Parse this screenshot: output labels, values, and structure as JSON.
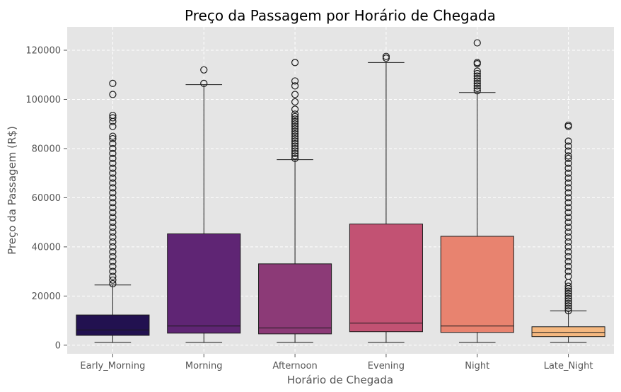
{
  "chart_data": {
    "type": "box",
    "title": "Preço da Passagem por Horário de Chegada",
    "xlabel": "Horário de Chegada",
    "ylabel": "Preço da Passagem (R$)",
    "ylim": [
      -3500,
      129500
    ],
    "yticks": [
      0,
      20000,
      40000,
      60000,
      80000,
      100000,
      120000
    ],
    "grid": true,
    "categories": [
      "Early_Morning",
      "Morning",
      "Afternoon",
      "Evening",
      "Night",
      "Late_Night"
    ],
    "boxes": [
      {
        "category": "Early_Morning",
        "whisker_low": 1100,
        "q1": 4000,
        "median": 6200,
        "q3": 12300,
        "whisker_high": 24500,
        "color": "#221150",
        "outliers": [
          25000,
          26500,
          28000,
          30000,
          32000,
          34000,
          36000,
          38000,
          40000,
          42000,
          44000,
          46000,
          48000,
          50000,
          52000,
          54000,
          56000,
          58000,
          60000,
          62000,
          64000,
          66000,
          68000,
          70000,
          72000,
          74000,
          76000,
          78000,
          80000,
          82000,
          84000,
          85000,
          89000,
          91000,
          92500,
          93500,
          102000,
          106500
        ]
      },
      {
        "category": "Morning",
        "whisker_low": 1100,
        "q1": 4900,
        "median": 7800,
        "q3": 45300,
        "whisker_high": 106000,
        "color": "#5f2574",
        "outliers": [
          106500,
          112000
        ]
      },
      {
        "category": "Afternoon",
        "whisker_low": 1100,
        "q1": 4600,
        "median": 7000,
        "q3": 33100,
        "whisker_high": 75500,
        "color": "#8c3a77",
        "outliers": [
          76000,
          77000,
          78000,
          79000,
          80000,
          81000,
          82000,
          83000,
          84000,
          85000,
          86000,
          87000,
          88000,
          89000,
          90000,
          91000,
          92000,
          93000,
          94000,
          96000,
          99000,
          102000,
          105500,
          107500,
          115000
        ]
      },
      {
        "category": "Evening",
        "whisker_low": 1100,
        "q1": 5500,
        "median": 9000,
        "q3": 49300,
        "whisker_high": 115000,
        "color": "#c25273",
        "outliers": [
          116800,
          117500
        ]
      },
      {
        "category": "Night",
        "whisker_low": 1100,
        "q1": 5200,
        "median": 7800,
        "q3": 44300,
        "whisker_high": 102800,
        "color": "#e8836f",
        "outliers": [
          103500,
          104500,
          105500,
          106500,
          107500,
          108500,
          109500,
          110500,
          111500,
          114500,
          115000,
          123000
        ]
      },
      {
        "category": "Late_Night",
        "whisker_low": 1100,
        "q1": 3500,
        "median": 5200,
        "q3": 7500,
        "whisker_high": 14000,
        "color": "#f5b880",
        "outliers": [
          14000,
          15000,
          16000,
          17000,
          18000,
          19000,
          20000,
          21000,
          22000,
          23000,
          24000,
          25500,
          28000,
          30000,
          32000,
          34000,
          36000,
          38000,
          40000,
          42000,
          44000,
          46000,
          48000,
          50000,
          52000,
          54000,
          56000,
          58000,
          60000,
          62000,
          64000,
          66000,
          68000,
          70000,
          72000,
          74000,
          76000,
          77000,
          79000,
          81000,
          83000,
          89000,
          89500
        ]
      }
    ]
  }
}
